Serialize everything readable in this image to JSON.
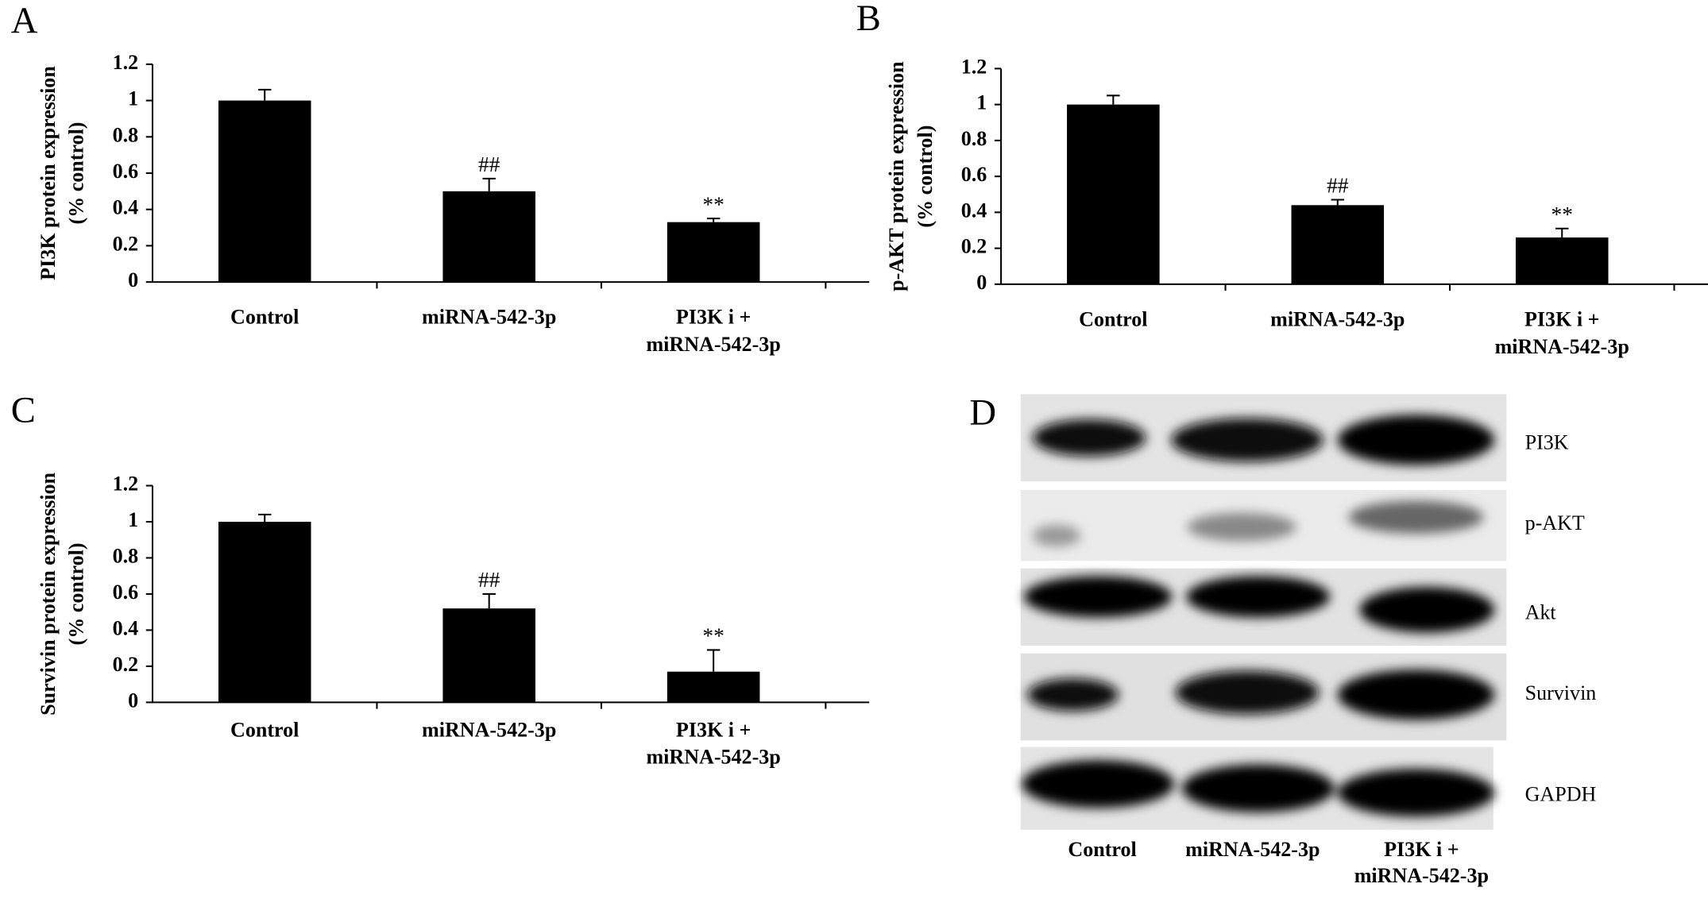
{
  "chart_data": [
    {
      "type": "bar",
      "panel": "A",
      "ylabel": "PI3K protein expression",
      "ylabel_unit": "(% control)",
      "categories": [
        "Control",
        "miRNA-542-3p",
        "PI3K i + miRNA-542-3p"
      ],
      "values": [
        1.0,
        0.5,
        0.33
      ],
      "errors": [
        0.06,
        0.07,
        0.02
      ],
      "annotations": [
        null,
        "##",
        "**"
      ],
      "color": "#000000",
      "ylim": [
        0,
        1.2
      ],
      "yticks": [
        0,
        0.2,
        0.4,
        0.6,
        0.8,
        1,
        1.2
      ],
      "grid": false
    },
    {
      "type": "bar",
      "panel": "B",
      "ylabel": "p-AKT protein expression",
      "ylabel_unit": "(% control)",
      "categories": [
        "Control",
        "miRNA-542-3p",
        "PI3K i + miRNA-542-3p"
      ],
      "values": [
        1.0,
        0.44,
        0.26
      ],
      "errors": [
        0.05,
        0.03,
        0.05
      ],
      "annotations": [
        null,
        "##",
        "**"
      ],
      "color": "#000000",
      "ylim": [
        0,
        1.2
      ],
      "yticks": [
        0,
        0.2,
        0.4,
        0.6,
        0.8,
        1,
        1.2
      ],
      "grid": false
    },
    {
      "type": "bar",
      "panel": "C",
      "ylabel": "Survivin protein expression",
      "ylabel_unit": "(% control)",
      "categories": [
        "Control",
        "miRNA-542-3p",
        "PI3K i + miRNA-542-3p"
      ],
      "values": [
        1.0,
        0.52,
        0.17
      ],
      "errors": [
        0.04,
        0.08,
        0.12
      ],
      "annotations": [
        null,
        "##",
        "**"
      ],
      "color": "#000000",
      "ylim": [
        0,
        1.2
      ],
      "yticks": [
        0,
        0.2,
        0.4,
        0.6,
        0.8,
        1,
        1.2
      ],
      "grid": false
    }
  ],
  "blot": {
    "panel": "D",
    "proteins": [
      "PI3K",
      "p-AKT",
      "Akt",
      "Survivin",
      "GAPDH"
    ],
    "lanes": [
      "Control",
      "miRNA-542-3p",
      "PI3K i + miRNA-542-3p"
    ]
  }
}
